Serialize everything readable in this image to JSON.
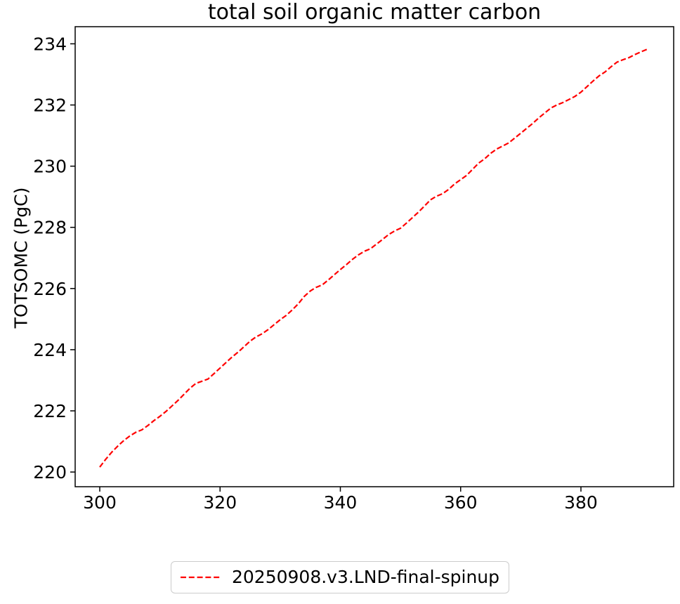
{
  "chart_data": {
    "type": "line",
    "title": "total soil organic matter carbon",
    "xlabel": "",
    "ylabel": "TOTSOMC (PgC)",
    "xlim": [
      295.91,
      395.42
    ],
    "ylim": [
      219.52,
      234.56
    ],
    "xticks": [
      300,
      320,
      340,
      360,
      380
    ],
    "yticks": [
      220,
      222,
      224,
      226,
      228,
      230,
      232,
      234
    ],
    "grid": false,
    "axis_color": "#000000",
    "legend_position": "lower center below axes",
    "legend_edge_color": "#cccccc",
    "series": [
      {
        "name": "20250908.v3.LND-final-spinup",
        "color": "#ff0000",
        "linestyle": "dashed",
        "x_start": 300,
        "x_end": 391,
        "x_step": 1,
        "values": [
          220.16,
          220.42,
          220.65,
          220.85,
          221.03,
          221.18,
          221.3,
          221.38,
          221.52,
          221.68,
          221.82,
          221.98,
          222.16,
          222.34,
          222.54,
          222.74,
          222.9,
          222.97,
          223.04,
          223.22,
          223.4,
          223.58,
          223.76,
          223.92,
          224.1,
          224.28,
          224.42,
          224.52,
          224.66,
          224.82,
          224.98,
          225.12,
          225.3,
          225.5,
          225.74,
          225.92,
          226.04,
          226.12,
          226.28,
          226.45,
          226.62,
          226.78,
          226.95,
          227.1,
          227.22,
          227.3,
          227.45,
          227.6,
          227.76,
          227.88,
          227.97,
          228.14,
          228.32,
          228.5,
          228.7,
          228.9,
          229.02,
          229.1,
          229.24,
          229.42,
          229.56,
          229.7,
          229.9,
          230.1,
          230.24,
          230.42,
          230.56,
          230.66,
          230.76,
          230.92,
          231.08,
          231.24,
          231.4,
          231.58,
          231.74,
          231.9,
          232.0,
          232.08,
          232.18,
          232.28,
          232.42,
          232.6,
          232.78,
          232.95,
          233.08,
          233.25,
          233.4,
          233.48,
          233.55,
          233.65,
          233.74,
          233.82
        ]
      }
    ]
  },
  "legend": {
    "entries": [
      {
        "label": "20250908.v3.LND-final-spinup",
        "color": "#ff0000",
        "linestyle": "dashed"
      }
    ]
  }
}
